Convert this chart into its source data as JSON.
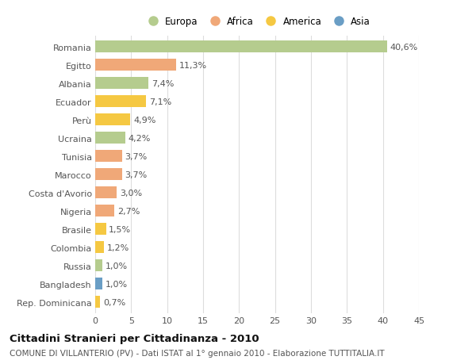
{
  "countries": [
    "Romania",
    "Egitto",
    "Albania",
    "Ecuador",
    "Perù",
    "Ucraina",
    "Tunisia",
    "Marocco",
    "Costa d'Avorio",
    "Nigeria",
    "Brasile",
    "Colombia",
    "Russia",
    "Bangladesh",
    "Rep. Dominicana"
  ],
  "values": [
    40.6,
    11.3,
    7.4,
    7.1,
    4.9,
    4.2,
    3.7,
    3.7,
    3.0,
    2.7,
    1.5,
    1.2,
    1.0,
    1.0,
    0.7
  ],
  "labels": [
    "40,6%",
    "11,3%",
    "7,4%",
    "7,1%",
    "4,9%",
    "4,2%",
    "3,7%",
    "3,7%",
    "3,0%",
    "2,7%",
    "1,5%",
    "1,2%",
    "1,0%",
    "1,0%",
    "0,7%"
  ],
  "colors": [
    "#b5cc8e",
    "#f0a878",
    "#b5cc8e",
    "#f5c842",
    "#f5c842",
    "#b5cc8e",
    "#f0a878",
    "#f0a878",
    "#f0a878",
    "#f0a878",
    "#f5c842",
    "#f5c842",
    "#b5cc8e",
    "#6a9ec5",
    "#f5c842"
  ],
  "legend_labels": [
    "Europa",
    "Africa",
    "America",
    "Asia"
  ],
  "legend_colors": [
    "#b5cc8e",
    "#f0a878",
    "#f5c842",
    "#6a9ec5"
  ],
  "xlim": [
    0,
    45
  ],
  "xticks": [
    0,
    5,
    10,
    15,
    20,
    25,
    30,
    35,
    40,
    45
  ],
  "title": "Cittadini Stranieri per Cittadinanza - 2010",
  "subtitle": "COMUNE DI VILLANTERIO (PV) - Dati ISTAT al 1° gennaio 2010 - Elaborazione TUTTITALIA.IT",
  "bg_color": "#ffffff",
  "bar_height": 0.65,
  "grid_color": "#dddddd",
  "label_fontsize": 8.0,
  "tick_fontsize": 8.0,
  "title_fontsize": 9.5,
  "subtitle_fontsize": 7.5
}
